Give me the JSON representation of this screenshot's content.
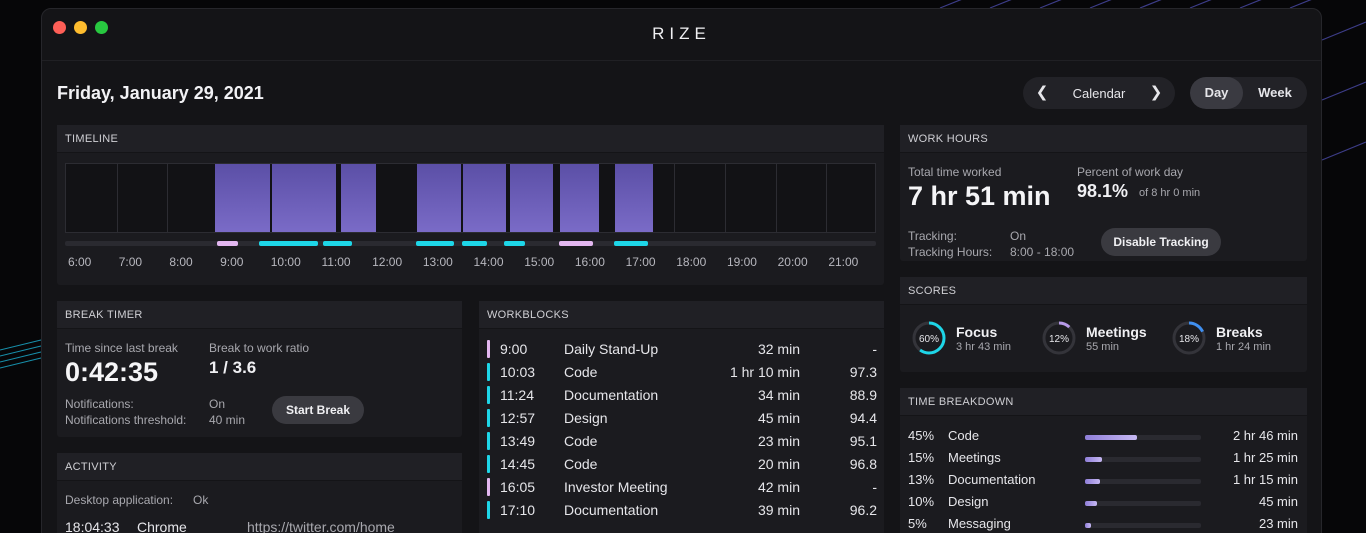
{
  "app": {
    "title": "RIZE"
  },
  "header": {
    "date": "Friday, January 29, 2021",
    "calendar_label": "Calendar",
    "view_day": "Day",
    "view_week": "Week"
  },
  "timeline": {
    "title": "TIMELINE",
    "ticks": [
      "6:00",
      "7:00",
      "8:00",
      "9:00",
      "10:00",
      "11:00",
      "12:00",
      "13:00",
      "14:00",
      "15:00",
      "16:00",
      "17:00",
      "18:00",
      "19:00",
      "20:00",
      "21:00"
    ],
    "activity_blocks": [
      {
        "start": "8:56",
        "end": "10:01"
      },
      {
        "start": "10:04",
        "end": "11:20"
      },
      {
        "start": "11:25",
        "end": "12:07"
      },
      {
        "start": "12:56",
        "end": "13:48"
      },
      {
        "start": "13:50",
        "end": "14:41"
      },
      {
        "start": "14:46",
        "end": "15:36"
      },
      {
        "start": "15:45",
        "end": "16:31"
      },
      {
        "start": "16:50",
        "end": "17:35"
      }
    ],
    "segments": [
      {
        "type": "meeting",
        "start": "9:00",
        "end": "9:25"
      },
      {
        "type": "focus",
        "start": "9:50",
        "end": "11:00"
      },
      {
        "type": "focus",
        "start": "11:05",
        "end": "11:40"
      },
      {
        "type": "focus",
        "start": "12:55",
        "end": "13:40"
      },
      {
        "type": "focus",
        "start": "13:50",
        "end": "14:20"
      },
      {
        "type": "focus",
        "start": "14:40",
        "end": "15:05"
      },
      {
        "type": "meeting",
        "start": "15:45",
        "end": "16:25"
      },
      {
        "type": "focus",
        "start": "16:50",
        "end": "17:30"
      }
    ],
    "colors": {
      "focus": "#1ed6e8",
      "meeting": "#e3b7f0",
      "block": "#6a5cb8"
    }
  },
  "work_hours": {
    "title": "WORK HOURS",
    "total_label": "Total time worked",
    "total_value": "7 hr 51 min",
    "percent_label": "Percent of work day",
    "percent_value": "98.1%",
    "percent_of": "of 8 hr 0 min",
    "tracking_label": "Tracking:",
    "tracking_value": "On",
    "tracking_hours_label": "Tracking Hours:",
    "tracking_hours_value": "8:00 - 18:00",
    "disable_button": "Disable Tracking"
  },
  "scores": {
    "title": "SCORES",
    "items": [
      {
        "label": "Focus",
        "pct_text": "60%",
        "pct": 0.6,
        "sub": "3 hr 43 min",
        "color": "#1ed6e8"
      },
      {
        "label": "Meetings",
        "pct_text": "12%",
        "pct": 0.12,
        "sub": "55 min",
        "color": "#b79ae8"
      },
      {
        "label": "Breaks",
        "pct_text": "18%",
        "pct": 0.18,
        "sub": "1 hr 24 min",
        "color": "#3f8ff0"
      }
    ]
  },
  "time_breakdown": {
    "title": "TIME BREAKDOWN",
    "rows": [
      {
        "pct": "45%",
        "name": "Code",
        "value": 0.45,
        "duration": "2 hr 46 min"
      },
      {
        "pct": "15%",
        "name": "Meetings",
        "value": 0.15,
        "duration": "1 hr 25 min"
      },
      {
        "pct": "13%",
        "name": "Documentation",
        "value": 0.13,
        "duration": "1 hr 15 min"
      },
      {
        "pct": "10%",
        "name": "Design",
        "value": 0.1,
        "duration": "45 min"
      },
      {
        "pct": "5%",
        "name": "Messaging",
        "value": 0.05,
        "duration": "23 min"
      }
    ]
  },
  "break_timer": {
    "title": "BREAK TIMER",
    "since_label": "Time since last break",
    "since_value": "0:42:35",
    "ratio_label": "Break to work ratio",
    "ratio_value": "1 / 3.6",
    "notifications_label": "Notifications:",
    "notifications_value": "On",
    "threshold_label": "Notifications threshold:",
    "threshold_value": "40 min",
    "start_button": "Start Break"
  },
  "activity": {
    "title": "ACTIVITY",
    "desktop_label": "Desktop application:",
    "desktop_value": "Ok",
    "row": {
      "time": "18:04:33",
      "app": "Chrome",
      "url": "https://twitter.com/home"
    }
  },
  "workblocks": {
    "title": "WORKBLOCKS",
    "rows": [
      {
        "time": "9:00",
        "name": "Daily Stand-Up",
        "duration": "32 min",
        "score": "-",
        "kind": "meeting"
      },
      {
        "time": "10:03",
        "name": "Code",
        "duration": "1 hr 10 min",
        "score": "97.3",
        "kind": "focus"
      },
      {
        "time": "11:24",
        "name": "Documentation",
        "duration": "34 min",
        "score": "88.9",
        "kind": "focus"
      },
      {
        "time": "12:57",
        "name": "Design",
        "duration": "45 min",
        "score": "94.4",
        "kind": "focus"
      },
      {
        "time": "13:49",
        "name": "Code",
        "duration": "23 min",
        "score": "95.1",
        "kind": "focus"
      },
      {
        "time": "14:45",
        "name": "Code",
        "duration": "20 min",
        "score": "96.8",
        "kind": "focus"
      },
      {
        "time": "16:05",
        "name": "Investor Meeting",
        "duration": "42 min",
        "score": "-",
        "kind": "meeting"
      },
      {
        "time": "17:10",
        "name": "Documentation",
        "duration": "39 min",
        "score": "96.2",
        "kind": "focus"
      }
    ]
  }
}
